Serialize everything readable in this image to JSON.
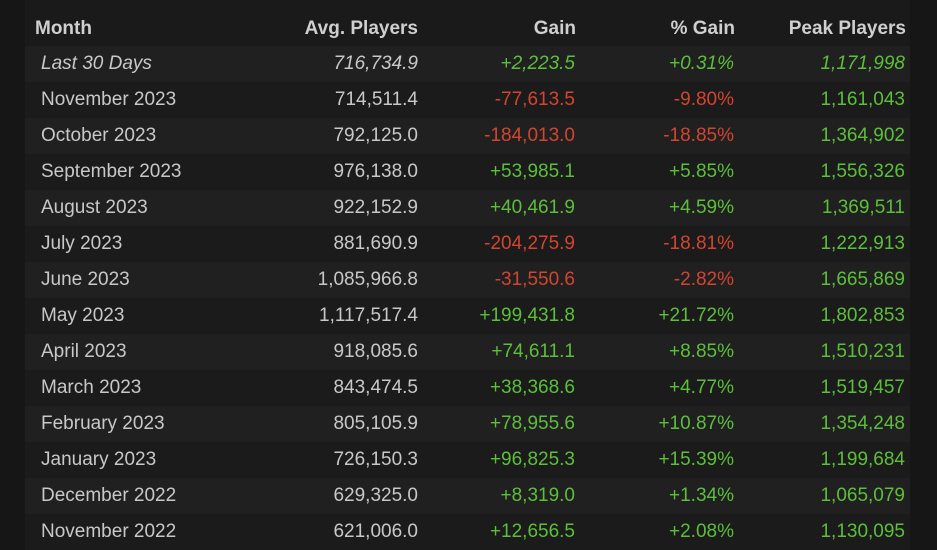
{
  "table": {
    "header": [
      "Month",
      "Avg. Players",
      "Gain",
      "% Gain",
      "Peak Players"
    ],
    "rows": [
      [
        "Last 30 Days",
        "716,734.9",
        "+2,223.5",
        "+0.31%",
        "1,171,998"
      ],
      [
        "November 2023",
        "714,511.4",
        "-77,613.5",
        "-9.80%",
        "1,161,043"
      ],
      [
        "October 2023",
        "792,125.0",
        "-184,013.0",
        "-18.85%",
        "1,364,902"
      ],
      [
        "September 2023",
        "976,138.0",
        "+53,985.1",
        "+5.85%",
        "1,556,326"
      ],
      [
        "August 2023",
        "922,152.9",
        "+40,461.9",
        "+4.59%",
        "1,369,511"
      ],
      [
        "July 2023",
        "881,690.9",
        "-204,275.9",
        "-18.81%",
        "1,222,913"
      ],
      [
        "June 2023",
        "1,085,966.8",
        "-31,550.6",
        "-2.82%",
        "1,665,869"
      ],
      [
        "May 2023",
        "1,117,517.4",
        "+199,431.8",
        "+21.72%",
        "1,802,853"
      ],
      [
        "April 2023",
        "918,085.6",
        "+74,611.1",
        "+8.85%",
        "1,510,231"
      ],
      [
        "March 2023",
        "843,474.5",
        "+38,368.6",
        "+4.77%",
        "1,519,457"
      ],
      [
        "February 2023",
        "805,105.9",
        "+78,955.6",
        "+10.87%",
        "1,354,248"
      ],
      [
        "January 2023",
        "726,150.3",
        "+96,825.3",
        "+15.39%",
        "1,199,684"
      ],
      [
        "December 2022",
        "629,325.0",
        "+8,319.0",
        "+1.34%",
        "1,065,079"
      ],
      [
        "November 2022",
        "621,006.0",
        "+12,656.5",
        "+2.08%",
        "1,130,095"
      ]
    ]
  }
}
